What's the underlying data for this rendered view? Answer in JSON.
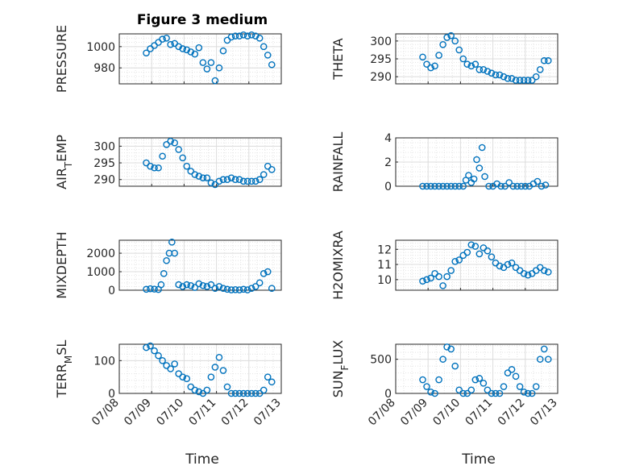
{
  "figure_title": "Figure 3 medium",
  "x_axis": {
    "label": "Time",
    "tick_labels": [
      "07/08",
      "07/09",
      "07/10",
      "07/11",
      "07/12",
      "07/13"
    ],
    "range": [
      "07/08",
      "07/13"
    ]
  },
  "colors": {
    "marker": "#0072BD",
    "axis": "#262626",
    "grid": "#dcdcdc"
  },
  "chart_data": [
    {
      "type": "scatter",
      "title": "Figure 3 medium",
      "ylabel": "PRESSURE",
      "ylim": [
        965,
        1012
      ],
      "yticks": [
        980,
        1000
      ],
      "grid": true,
      "x": [
        "07/08 20:00",
        "07/08 23:00",
        "07/09 02:00",
        "07/09 05:00",
        "07/09 08:00",
        "07/09 11:00",
        "07/09 14:00",
        "07/09 17:00",
        "07/09 20:00",
        "07/09 23:00",
        "07/10 02:00",
        "07/10 05:00",
        "07/10 08:00",
        "07/10 11:00",
        "07/10 14:00",
        "07/10 17:00",
        "07/10 20:00",
        "07/10 23:00",
        "07/11 02:00",
        "07/11 05:00",
        "07/11 08:00",
        "07/11 11:00",
        "07/11 14:00",
        "07/11 17:00",
        "07/11 20:00",
        "07/11 23:00",
        "07/12 02:00",
        "07/12 05:00",
        "07/12 08:00",
        "07/12 11:00",
        "07/12 14:00",
        "07/12 17:00"
      ],
      "y": [
        994,
        998,
        1001,
        1004,
        1007,
        1008,
        1002,
        1003,
        1000,
        998,
        997,
        995,
        993,
        999,
        985,
        979,
        985,
        968,
        980,
        996,
        1006,
        1009,
        1010,
        1010,
        1011,
        1010,
        1011,
        1010,
        1008,
        1000,
        992,
        983
      ]
    },
    {
      "type": "scatter",
      "ylabel": "THETA",
      "ylim": [
        288,
        302
      ],
      "yticks": [
        290,
        295,
        300
      ],
      "grid": true,
      "x": [
        "07/08 20:00",
        "07/08 23:00",
        "07/09 02:00",
        "07/09 05:00",
        "07/09 08:00",
        "07/09 11:00",
        "07/09 14:00",
        "07/09 17:00",
        "07/09 20:00",
        "07/09 23:00",
        "07/10 02:00",
        "07/10 05:00",
        "07/10 08:00",
        "07/10 11:00",
        "07/10 14:00",
        "07/10 17:00",
        "07/10 20:00",
        "07/10 23:00",
        "07/11 02:00",
        "07/11 05:00",
        "07/11 08:00",
        "07/11 11:00",
        "07/11 14:00",
        "07/11 17:00",
        "07/11 20:00",
        "07/11 23:00",
        "07/12 02:00",
        "07/12 05:00",
        "07/12 08:00",
        "07/12 11:00",
        "07/12 14:00",
        "07/12 17:00"
      ],
      "y": [
        295.5,
        293.5,
        292.5,
        293,
        296,
        299,
        301,
        301.5,
        300,
        297.5,
        295,
        293.5,
        293,
        293.5,
        292,
        292,
        291.5,
        291,
        290.5,
        290.5,
        290,
        289.5,
        289.5,
        289,
        289,
        289,
        289,
        289,
        290,
        292,
        294.5,
        294.5
      ]
    },
    {
      "type": "scatter",
      "ylabel": "AIR_TEMP",
      "ylim": [
        288,
        302.5
      ],
      "yticks": [
        290,
        295,
        300
      ],
      "grid": true,
      "x": [
        "07/08 20:00",
        "07/08 23:00",
        "07/09 02:00",
        "07/09 05:00",
        "07/09 08:00",
        "07/09 11:00",
        "07/09 14:00",
        "07/09 17:00",
        "07/09 20:00",
        "07/09 23:00",
        "07/10 02:00",
        "07/10 05:00",
        "07/10 08:00",
        "07/10 11:00",
        "07/10 14:00",
        "07/10 17:00",
        "07/10 20:00",
        "07/10 23:00",
        "07/11 02:00",
        "07/11 05:00",
        "07/11 08:00",
        "07/11 11:00",
        "07/11 14:00",
        "07/11 17:00",
        "07/11 20:00",
        "07/11 23:00",
        "07/12 02:00",
        "07/12 05:00",
        "07/12 08:00",
        "07/12 11:00",
        "07/12 14:00",
        "07/12 17:00"
      ],
      "y": [
        295,
        294,
        293.5,
        293.5,
        297,
        300.5,
        301.5,
        301,
        299,
        296.5,
        294,
        292.5,
        291.5,
        291,
        290.5,
        290.5,
        289,
        288.5,
        289.5,
        290,
        290,
        290.5,
        290,
        290,
        289.5,
        289.5,
        289.5,
        289.5,
        290,
        291.5,
        294,
        293
      ]
    },
    {
      "type": "scatter",
      "ylabel": "RAINFALL",
      "ylim": [
        0,
        4
      ],
      "yticks": [
        0,
        2,
        4
      ],
      "grid": true,
      "x": [
        "07/08 20:00",
        "07/08 23:00",
        "07/09 02:00",
        "07/09 05:00",
        "07/09 08:00",
        "07/09 11:00",
        "07/09 14:00",
        "07/09 17:00",
        "07/09 20:00",
        "07/09 23:00",
        "07/10 02:00",
        "07/10 04:00",
        "07/10 06:00",
        "07/10 08:00",
        "07/10 10:00",
        "07/10 12:00",
        "07/10 14:00",
        "07/10 16:00",
        "07/10 18:00",
        "07/10 21:00",
        "07/11 00:00",
        "07/11 03:00",
        "07/11 06:00",
        "07/11 09:00",
        "07/11 12:00",
        "07/11 15:00",
        "07/11 18:00",
        "07/11 21:00",
        "07/12 00:00",
        "07/12 03:00",
        "07/12 06:00",
        "07/12 09:00",
        "07/12 12:00",
        "07/12 15:00"
      ],
      "y": [
        0,
        0,
        0,
        0,
        0,
        0,
        0,
        0,
        0,
        0,
        0,
        0.5,
        0.9,
        0.3,
        0.6,
        2.2,
        1.5,
        3.2,
        0.8,
        0,
        0,
        0.2,
        0,
        0,
        0.3,
        0,
        0,
        0,
        0,
        0,
        0.2,
        0.4,
        0,
        0.1
      ]
    },
    {
      "type": "scatter",
      "ylabel": "MIXDEPTH",
      "ylim": [
        0,
        2700
      ],
      "yticks": [
        0,
        1000,
        2000
      ],
      "grid": true,
      "x": [
        "07/08 20:00",
        "07/08 23:00",
        "07/09 02:00",
        "07/09 05:00",
        "07/09 07:00",
        "07/09 09:00",
        "07/09 11:00",
        "07/09 13:00",
        "07/09 15:00",
        "07/09 17:00",
        "07/09 20:00",
        "07/09 23:00",
        "07/10 02:00",
        "07/10 05:00",
        "07/10 08:00",
        "07/10 11:00",
        "07/10 14:00",
        "07/10 17:00",
        "07/10 20:00",
        "07/10 23:00",
        "07/11 02:00",
        "07/11 05:00",
        "07/11 08:00",
        "07/11 11:00",
        "07/11 14:00",
        "07/11 17:00",
        "07/11 20:00",
        "07/11 23:00",
        "07/12 02:00",
        "07/12 05:00",
        "07/12 08:00",
        "07/12 11:00",
        "07/12 14:00",
        "07/12 17:00"
      ],
      "y": [
        50,
        80,
        60,
        40,
        300,
        900,
        1600,
        2000,
        2600,
        2000,
        300,
        200,
        300,
        250,
        150,
        350,
        250,
        200,
        300,
        100,
        200,
        100,
        50,
        20,
        30,
        20,
        50,
        20,
        100,
        200,
        400,
        900,
        1000,
        100
      ]
    },
    {
      "type": "scatter",
      "ylabel": "H2OMIXRA",
      "ylim": [
        9.3,
        12.6
      ],
      "yticks": [
        10,
        11,
        12
      ],
      "grid": true,
      "x": [
        "07/08 20:00",
        "07/08 23:00",
        "07/09 02:00",
        "07/09 05:00",
        "07/09 08:00",
        "07/09 11:00",
        "07/09 14:00",
        "07/09 17:00",
        "07/09 20:00",
        "07/09 23:00",
        "07/10 02:00",
        "07/10 05:00",
        "07/10 08:00",
        "07/10 11:00",
        "07/10 14:00",
        "07/10 17:00",
        "07/10 20:00",
        "07/10 23:00",
        "07/11 02:00",
        "07/11 05:00",
        "07/11 08:00",
        "07/11 11:00",
        "07/11 14:00",
        "07/11 17:00",
        "07/11 20:00",
        "07/11 23:00",
        "07/12 02:00",
        "07/12 05:00",
        "07/12 08:00",
        "07/12 11:00",
        "07/12 14:00",
        "07/12 17:00"
      ],
      "y": [
        9.9,
        10,
        10.1,
        10.4,
        10.2,
        9.6,
        10.2,
        10.6,
        11.2,
        11.3,
        11.6,
        11.8,
        12.3,
        12.2,
        11.7,
        12.1,
        11.9,
        11.5,
        11.1,
        10.9,
        10.8,
        11,
        11.1,
        10.8,
        10.6,
        10.4,
        10.3,
        10.4,
        10.6,
        10.8,
        10.6,
        10.5
      ]
    },
    {
      "type": "scatter",
      "ylabel": "TERR_MSL",
      "ylim": [
        0,
        150
      ],
      "yticks": [
        0,
        100
      ],
      "grid": true,
      "x": [
        "07/08 20:00",
        "07/08 23:00",
        "07/09 02:00",
        "07/09 05:00",
        "07/09 08:00",
        "07/09 11:00",
        "07/09 14:00",
        "07/09 17:00",
        "07/09 20:00",
        "07/09 23:00",
        "07/10 02:00",
        "07/10 05:00",
        "07/10 08:00",
        "07/10 11:00",
        "07/10 14:00",
        "07/10 17:00",
        "07/10 20:00",
        "07/10 23:00",
        "07/11 02:00",
        "07/11 05:00",
        "07/11 08:00",
        "07/11 11:00",
        "07/11 14:00",
        "07/11 17:00",
        "07/11 20:00",
        "07/11 23:00",
        "07/12 02:00",
        "07/12 05:00",
        "07/12 08:00",
        "07/12 11:00",
        "07/12 14:00",
        "07/12 17:00"
      ],
      "y": [
        140,
        145,
        130,
        115,
        100,
        85,
        75,
        90,
        60,
        50,
        45,
        20,
        10,
        5,
        0,
        10,
        50,
        80,
        110,
        70,
        20,
        0,
        0,
        0,
        0,
        0,
        0,
        0,
        0,
        10,
        50,
        35
      ]
    },
    {
      "type": "scatter",
      "ylabel": "SUN_FLUX",
      "ylim": [
        0,
        720
      ],
      "yticks": [
        0,
        500
      ],
      "grid": true,
      "x": [
        "07/08 20:00",
        "07/08 23:00",
        "07/09 02:00",
        "07/09 05:00",
        "07/09 08:00",
        "07/09 11:00",
        "07/09 14:00",
        "07/09 17:00",
        "07/09 20:00",
        "07/09 23:00",
        "07/10 02:00",
        "07/10 05:00",
        "07/10 08:00",
        "07/10 11:00",
        "07/10 14:00",
        "07/10 17:00",
        "07/10 20:00",
        "07/10 23:00",
        "07/11 02:00",
        "07/11 05:00",
        "07/11 08:00",
        "07/11 11:00",
        "07/11 14:00",
        "07/11 17:00",
        "07/11 20:00",
        "07/11 23:00",
        "07/12 02:00",
        "07/12 05:00",
        "07/12 08:00",
        "07/12 11:00",
        "07/12 14:00",
        "07/12 17:00"
      ],
      "y": [
        200,
        100,
        20,
        0,
        200,
        500,
        680,
        650,
        400,
        50,
        0,
        0,
        50,
        200,
        220,
        150,
        50,
        0,
        0,
        0,
        100,
        300,
        350,
        250,
        100,
        20,
        0,
        0,
        100,
        500,
        650,
        500
      ]
    }
  ]
}
